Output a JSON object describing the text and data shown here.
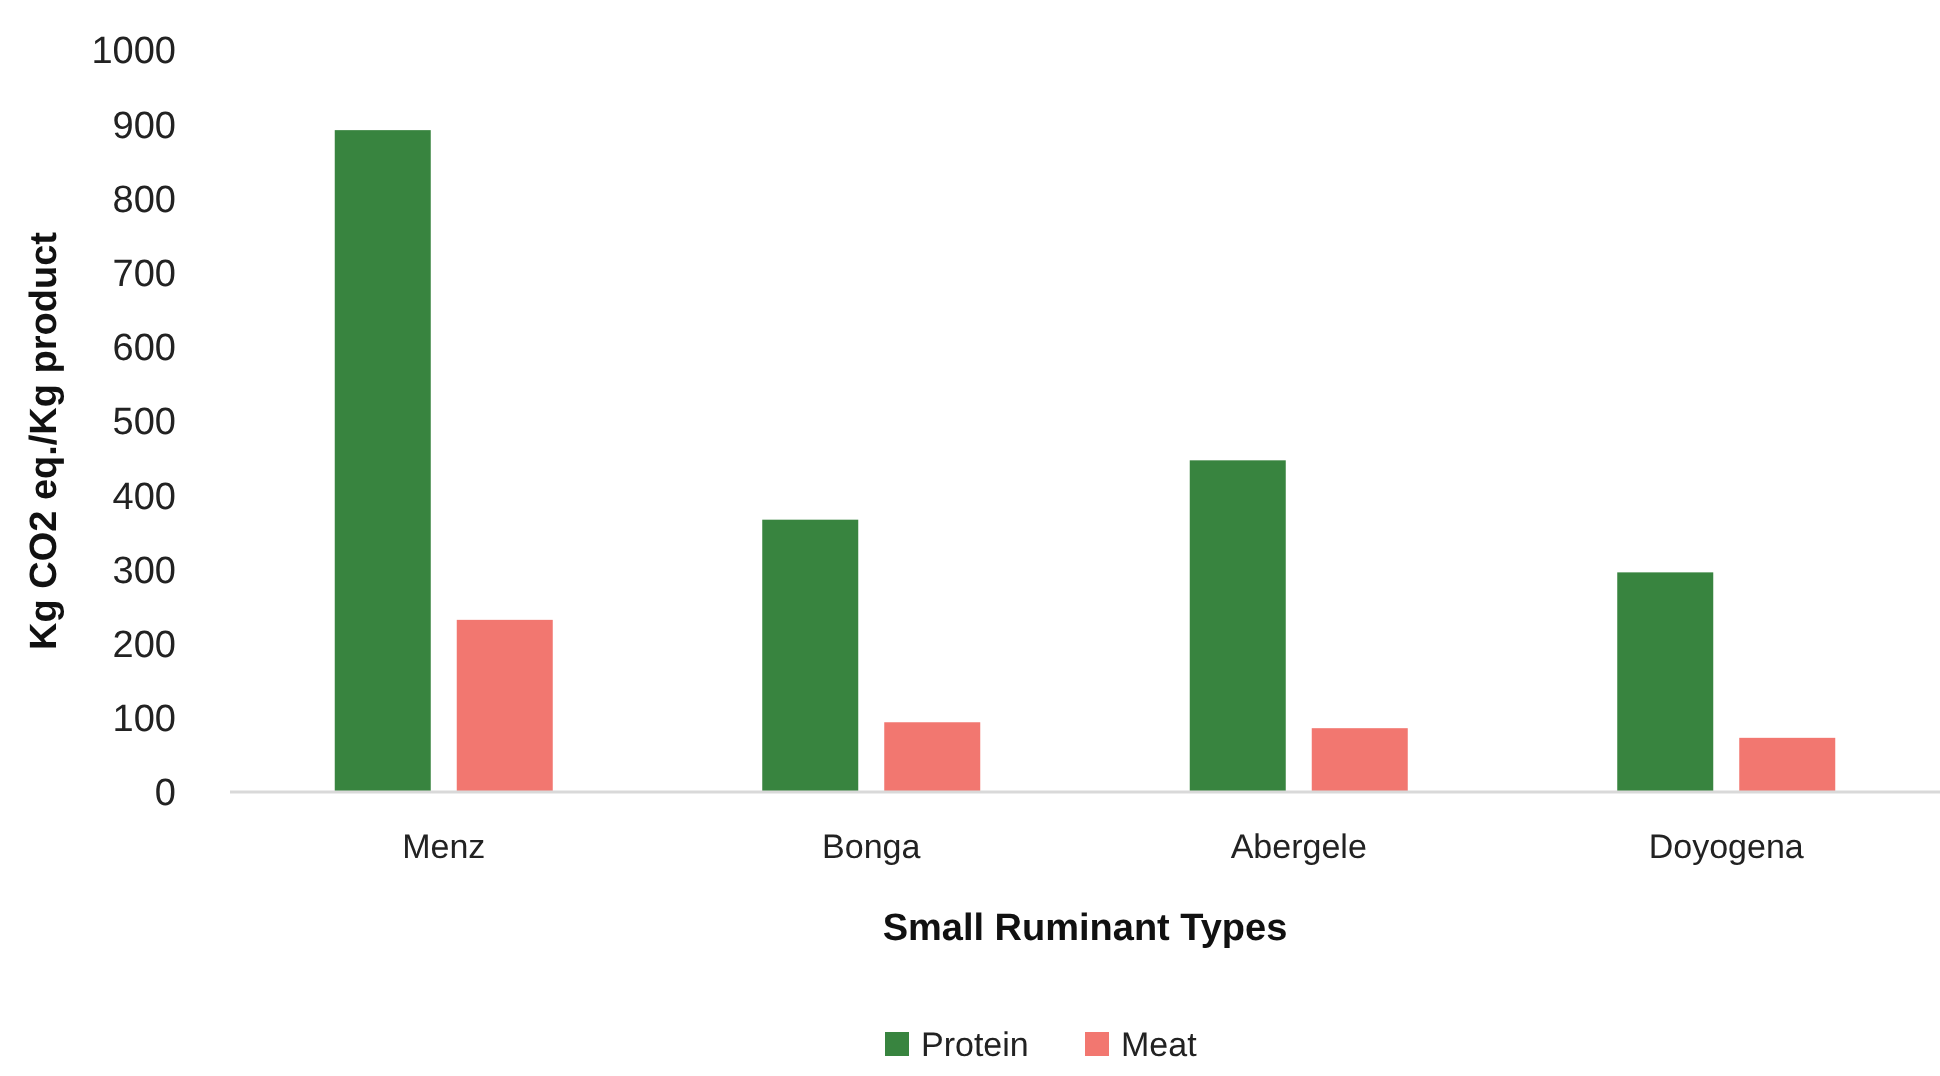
{
  "chart_data": {
    "type": "bar",
    "xlabel": "Small Ruminant Types",
    "ylabel": "Kg CO2 eq./Kg product",
    "categories": [
      "Menz",
      "Bonga",
      "Abergele",
      "Doyogena"
    ],
    "series": [
      {
        "name": "Protein",
        "color": "#38843f",
        "values": [
          892,
          367,
          447,
          296
        ]
      },
      {
        "name": "Meat",
        "color": "#f27770",
        "values": [
          232,
          94,
          86,
          73
        ]
      }
    ],
    "ylim": [
      0,
      1000
    ],
    "yticks": [
      0,
      100,
      200,
      300,
      400,
      500,
      600,
      700,
      800,
      900,
      1000
    ],
    "grid": false,
    "legend": "bottom"
  }
}
